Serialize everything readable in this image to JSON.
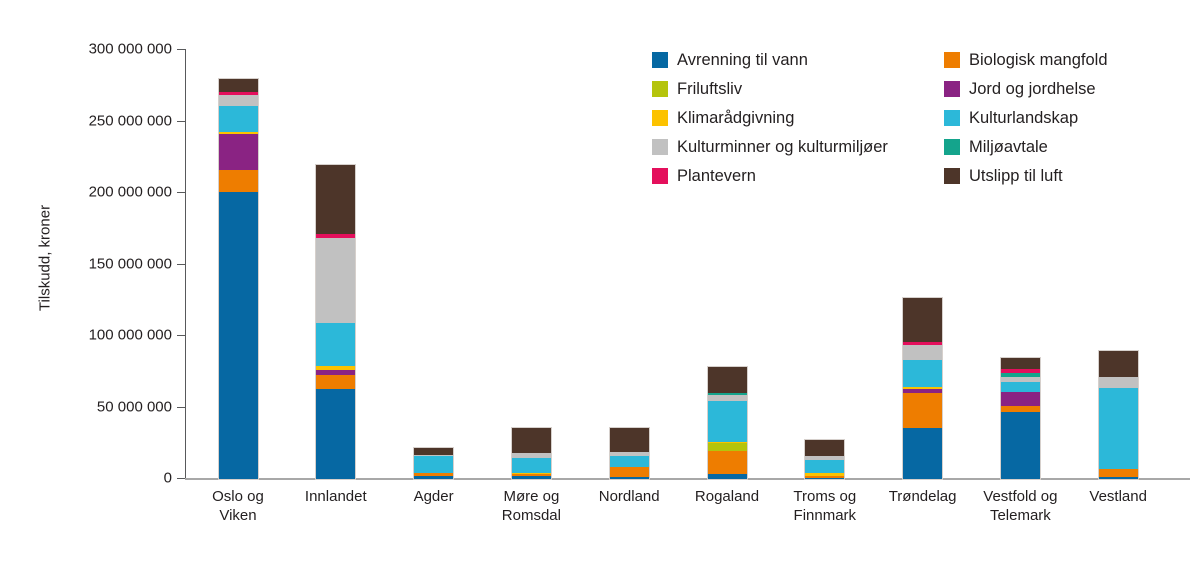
{
  "chart_data": {
    "type": "bar",
    "stacked": true,
    "title": "",
    "xlabel": "",
    "ylabel": "Tilskudd, kroner",
    "ylim": [
      0,
      300000000
    ],
    "yticks": [
      0,
      50000000,
      100000000,
      150000000,
      200000000,
      250000000,
      300000000
    ],
    "ytick_labels": [
      "0",
      "50 000 000",
      "100 000 000",
      "150 000 000",
      "200 000 000",
      "250 000 000",
      "300 000 000"
    ],
    "grid": false,
    "legend_position": "top-right",
    "categories": [
      "Oslo og\nViken",
      "Innlandet",
      "Agder",
      "Møre og\nRomsdal",
      "Nordland",
      "Rogaland",
      "Troms og\nFinnmark",
      "Trøndelag",
      "Vestfold og\nTelemark",
      "Vestland"
    ],
    "series": [
      {
        "name": "Avrenning til vann",
        "color": "#0668a3",
        "values": [
          200500000,
          63000000,
          2000000,
          2200000,
          1500000,
          3700000,
          800000,
          35900000,
          46900000,
          1500000
        ]
      },
      {
        "name": "Biologisk mangfold",
        "color": "#ee7d00",
        "values": [
          15500000,
          9500000,
          2300000,
          1200000,
          7000000,
          15800000,
          1600000,
          24100000,
          4200000,
          5500000
        ]
      },
      {
        "name": "Friluftsliv",
        "color": "#b5c40c",
        "values": [
          0,
          0,
          0,
          0,
          0,
          5400000,
          0,
          0,
          0,
          0
        ]
      },
      {
        "name": "Jord og jordhelse",
        "color": "#8a2383",
        "values": [
          25500000,
          4000000,
          0,
          0,
          0,
          0,
          0,
          2800000,
          9800000,
          0
        ]
      },
      {
        "name": "Klimarådgivning",
        "color": "#fcc200",
        "values": [
          1500000,
          2800000,
          0,
          1100000,
          0,
          900000,
          1800000,
          1900000,
          0,
          0
        ]
      },
      {
        "name": "Kulturlandskap",
        "color": "#2cb8d9",
        "values": [
          18000000,
          29500000,
          11700000,
          10500000,
          7700000,
          28700000,
          9400000,
          18700000,
          7000000,
          56600000
        ]
      },
      {
        "name": "Kulturminner og kulturmiljøer",
        "color": "#c1c1c1",
        "values": [
          7500000,
          60000000,
          1000000,
          3300000,
          2800000,
          4200000,
          2800000,
          10500000,
          3700000,
          8000000
        ]
      },
      {
        "name": "Miljøavtale",
        "color": "#14a48c",
        "values": [
          0,
          0,
          0,
          0,
          0,
          1600000,
          0,
          0,
          2800000,
          0
        ]
      },
      {
        "name": "Plantevern",
        "color": "#e40f5c",
        "values": [
          2500000,
          2300000,
          0,
          0,
          0,
          0,
          0,
          2100000,
          2300000,
          0
        ]
      },
      {
        "name": "Utslipp til luft",
        "color": "#4d3529",
        "values": [
          8500000,
          48500000,
          4500000,
          17200000,
          16800000,
          18200000,
          10600000,
          30500000,
          8100000,
          17900000
        ]
      }
    ],
    "legend_columns": [
      [
        "Avrenning til vann",
        "Friluftsliv",
        "Klimarådgivning",
        "Kulturminner og kulturmiljøer",
        "Plantevern"
      ],
      [
        "Biologisk mangfold",
        "Jord og jordhelse",
        "Kulturlandskap",
        "Miljøavtale",
        "Utslipp til luft"
      ]
    ]
  }
}
